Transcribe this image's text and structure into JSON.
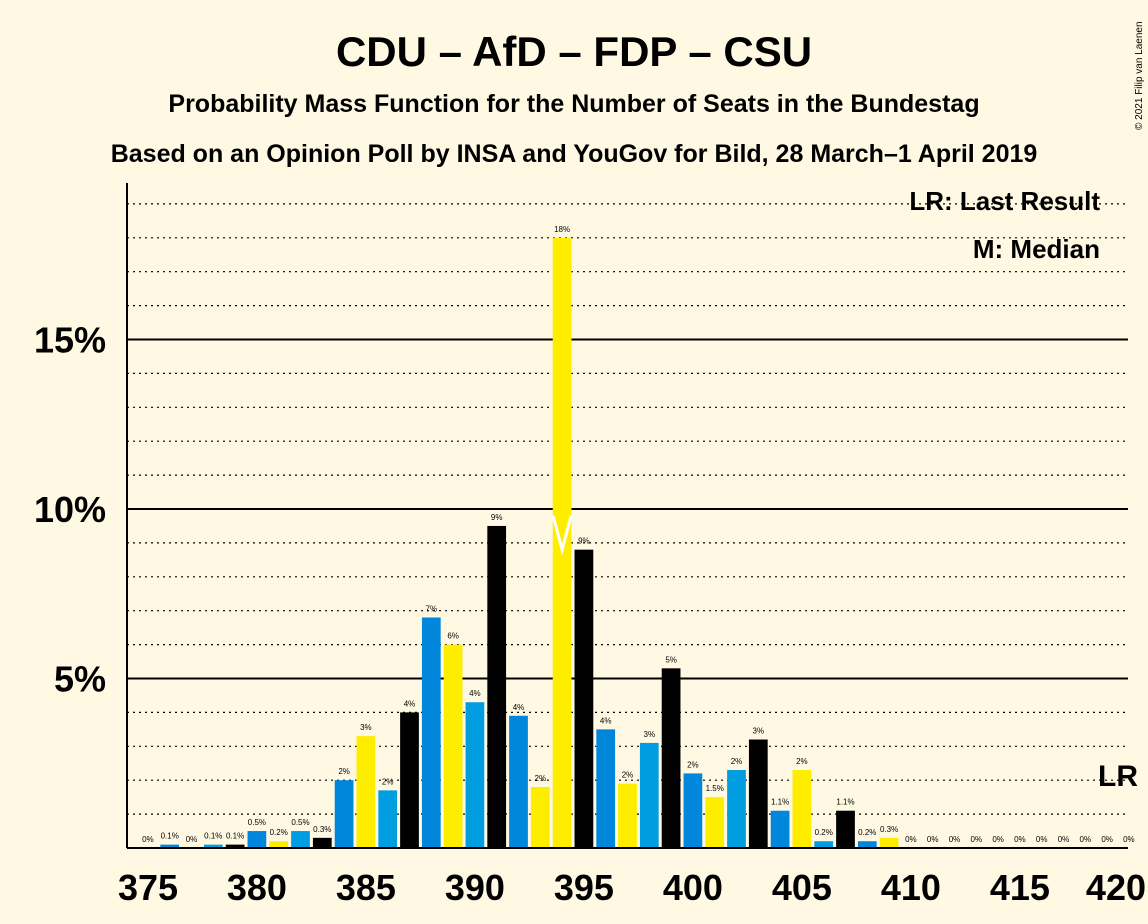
{
  "copyright": "© 2021 Filip van Laenen",
  "colors": {
    "background": "#FFF9E3",
    "cycle": [
      "#000000",
      "#0087DC",
      "#FFED00",
      "#009EE0"
    ],
    "median_bar": "#FFED00"
  },
  "chart_data": {
    "type": "bar",
    "title": "CDU – AfD – FDP – CSU",
    "subtitle": "Probability Mass Function for the Number of Seats in the Bundestag",
    "subtitle2": "Based on an Opinion Poll by INSA and YouGov for Bild, 28 March–1 April 2019",
    "legend": {
      "lr": "LR: Last Result",
      "m": "M: Median",
      "placement": "top-right"
    },
    "lr_marker": "LR",
    "x": [
      375,
      376,
      377,
      378,
      379,
      380,
      381,
      382,
      383,
      384,
      385,
      386,
      387,
      388,
      389,
      390,
      391,
      392,
      393,
      394,
      395,
      396,
      397,
      398,
      399,
      400,
      401,
      402,
      403,
      404,
      405,
      406,
      407,
      408,
      409,
      410,
      411,
      412,
      413,
      414,
      415,
      416,
      417,
      418,
      419,
      420
    ],
    "values": [
      0,
      0.1,
      0,
      0.1,
      0.1,
      0.5,
      0.2,
      0.5,
      0.3,
      2.0,
      3.3,
      1.7,
      4.0,
      6.8,
      6.0,
      4.3,
      9.5,
      3.9,
      1.8,
      18.0,
      8.8,
      3.5,
      1.9,
      3.1,
      5.3,
      2.2,
      1.5,
      2.3,
      3.2,
      1.1,
      2.3,
      0.2,
      1.1,
      0.2,
      0.3,
      0,
      0,
      0,
      0,
      0,
      0,
      0,
      0,
      0,
      0,
      0
    ],
    "labels": [
      "0%",
      "0.1%",
      "0%",
      "0.1%",
      "0.1%",
      "0.5%",
      "0.2%",
      "0.5%",
      "0.3%",
      "2%",
      "3%",
      "2%",
      "4%",
      "7%",
      "6%",
      "4%",
      "9%",
      "4%",
      "2%",
      "18%",
      "9%",
      "4%",
      "2%",
      "3%",
      "5%",
      "2%",
      "1.5%",
      "2%",
      "3%",
      "1.1%",
      "2%",
      "0.2%",
      "1.1%",
      "0.2%",
      "0.3%",
      "0%",
      "0%",
      "0%",
      "0%",
      "0%",
      "0%",
      "0%",
      "0%",
      "0%",
      "0%",
      "0%"
    ],
    "median": 394,
    "xlim": [
      375,
      420
    ],
    "ylim": [
      0,
      19
    ],
    "x_ticks": [
      "375",
      "380",
      "385",
      "390",
      "395",
      "400",
      "405",
      "410",
      "415",
      "420"
    ],
    "y_ticks": [
      {
        "v": 5,
        "label": "5%"
      },
      {
        "v": 10,
        "label": "10%"
      },
      {
        "v": 15,
        "label": "15%"
      }
    ],
    "minor_grid_step": 1,
    "grid": true
  }
}
